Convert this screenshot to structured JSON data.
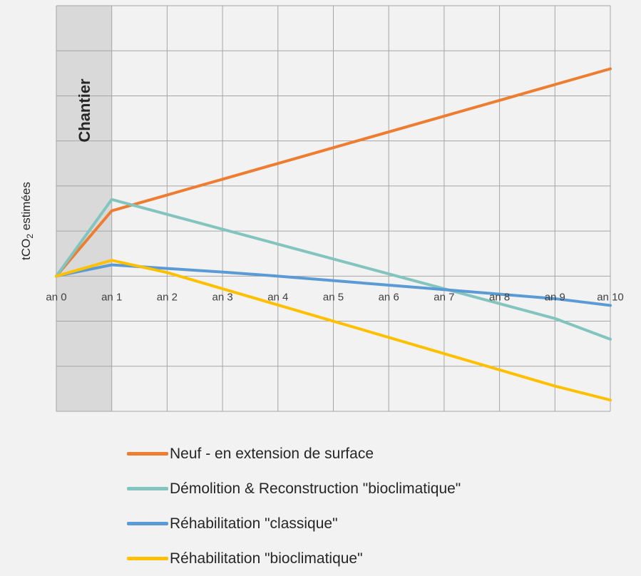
{
  "chart_data": {
    "type": "line",
    "x": [
      "an 0",
      "an 1",
      "an 2",
      "an 3",
      "an 4",
      "an 5",
      "an 6",
      "an 7",
      "an 8",
      "an 9",
      "an 10"
    ],
    "ylabel_main": "tCO",
    "ylabel_sub": "2",
    "ylabel_rest": " estimées",
    "ylim": [
      -3,
      6
    ],
    "band": {
      "label": "Chantier",
      "from": 0,
      "to": 1,
      "color": "#d9d9d9"
    },
    "grid": true,
    "legend_position": "bottom",
    "series": [
      {
        "name": "Neuf - en extension de surface",
        "color": "#ed7d31",
        "values": [
          0,
          1.45,
          1.8,
          2.15,
          2.5,
          2.85,
          3.2,
          3.55,
          3.9,
          4.25,
          4.6
        ]
      },
      {
        "name": "Démolition & Reconstruction \"bioclimatique\"",
        "color": "#83c5be",
        "values": [
          0,
          1.7,
          1.37,
          1.04,
          0.71,
          0.38,
          0.05,
          -0.28,
          -0.61,
          -0.94,
          -1.4
        ]
      },
      {
        "name": "Réhabilitation \"classique\"",
        "color": "#5b9bd5",
        "values": [
          0,
          0.25,
          0.17,
          0.09,
          0.0,
          -0.1,
          -0.2,
          -0.3,
          -0.4,
          -0.5,
          -0.65
        ]
      },
      {
        "name": "Réhabilitation \"bioclimatique\"",
        "color": "#ffc000",
        "values": [
          0,
          0.35,
          0.08,
          -0.28,
          -0.64,
          -1.0,
          -1.36,
          -1.72,
          -2.08,
          -2.44,
          -2.75
        ]
      }
    ]
  }
}
